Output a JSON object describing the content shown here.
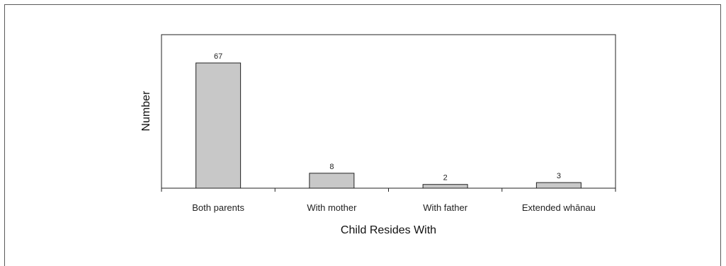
{
  "chart_data": {
    "type": "bar",
    "categories": [
      "Both parents",
      "With mother",
      "With father",
      "Extended whānau"
    ],
    "values": [
      67,
      8,
      2,
      3
    ],
    "data_labels": [
      "67",
      "8",
      "2",
      "3"
    ],
    "title": "",
    "xlabel": "Child Resides With",
    "ylabel": "Number",
    "ylim": [
      0,
      80
    ],
    "grid": false,
    "legend": "none",
    "colors": {
      "bar_fill": "#c8c8c8",
      "bar_stroke": "#222222",
      "axis": "#222222",
      "frame": "#5a5a5a"
    }
  }
}
